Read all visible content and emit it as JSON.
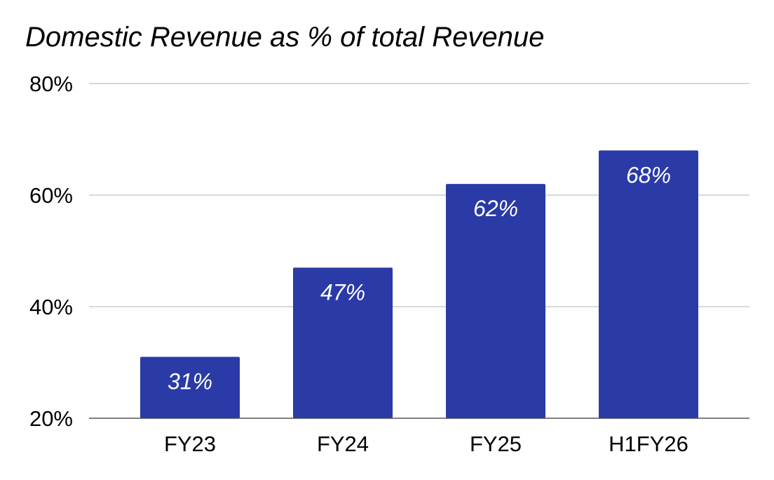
{
  "chart_data": {
    "type": "bar",
    "title": "Domestic Revenue as % of total Revenue",
    "xlabel": "",
    "ylabel": "",
    "categories": [
      "FY23",
      "FY24",
      "FY25",
      "H1FY26"
    ],
    "values": [
      31,
      47,
      62,
      68
    ],
    "data_labels": [
      "31%",
      "47%",
      "62%",
      "68%"
    ],
    "ylim": [
      20,
      80
    ],
    "yticks": [
      20,
      40,
      60,
      80
    ],
    "ytick_labels": [
      "20%",
      "40%",
      "60%",
      "80%"
    ],
    "grid": true,
    "legend": "none",
    "colors": {
      "bar": "#2a3aa6",
      "data_label": "#ffffff",
      "grid": "#cccccc",
      "text": "#000000"
    }
  }
}
